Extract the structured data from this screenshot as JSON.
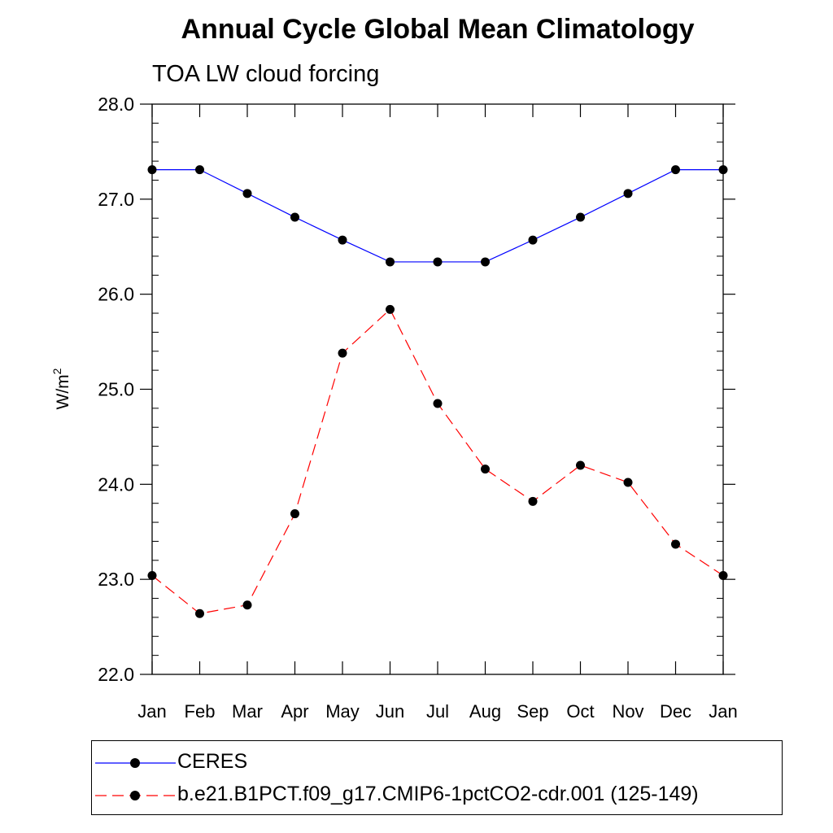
{
  "chart_data": {
    "type": "line",
    "title": "Annual Cycle Global Mean Climatology",
    "subtitle": "TOA LW cloud forcing",
    "ylabel_base": "W/m",
    "ylabel_sup": "2",
    "xlabel": "",
    "categories": [
      "Jan",
      "Feb",
      "Mar",
      "Apr",
      "May",
      "Jun",
      "Jul",
      "Aug",
      "Sep",
      "Oct",
      "Nov",
      "Dec",
      "Jan"
    ],
    "ylim": [
      22.0,
      28.0
    ],
    "yticks": [
      "22.0",
      "23.0",
      "24.0",
      "25.0",
      "26.0",
      "27.0",
      "28.0"
    ],
    "series": [
      {
        "name": "CERES",
        "color": "#0000ff",
        "dash": "solid",
        "values": [
          27.31,
          27.31,
          27.06,
          26.81,
          26.57,
          26.34,
          26.34,
          26.34,
          26.57,
          26.81,
          27.06,
          27.31,
          27.31
        ]
      },
      {
        "name": "b.e21.B1PCT.f09_g17.CMIP6-1pctCO2-cdr.001 (125-149)",
        "color": "#ff0000",
        "dash": "dashed",
        "values": [
          23.04,
          22.64,
          22.73,
          23.69,
          25.38,
          25.84,
          24.85,
          24.16,
          23.82,
          24.2,
          24.02,
          23.37,
          23.04
        ]
      }
    ]
  }
}
